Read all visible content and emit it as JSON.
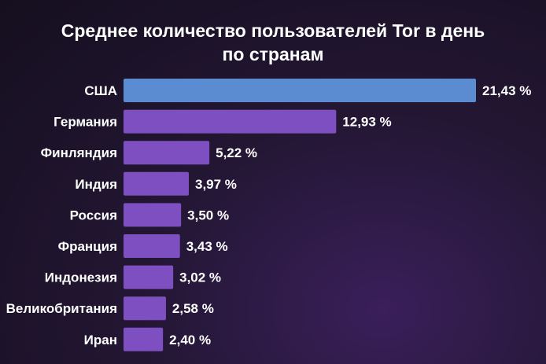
{
  "chart_data": {
    "type": "bar",
    "orientation": "horizontal",
    "title_lines": [
      "Среднее количество пользователей Tor в день",
      "по странам"
    ],
    "categories": [
      "США",
      "Германия",
      "Финляндия",
      "Индия",
      "Россия",
      "Франция",
      "Индонезия",
      "Великобритания",
      "Иран"
    ],
    "values": [
      21.43,
      12.93,
      5.22,
      3.97,
      3.5,
      3.43,
      3.02,
      2.58,
      2.4
    ],
    "value_labels": [
      "21,43 %",
      "12,93 %",
      "5,22 %",
      "3,97 %",
      "3,50 %",
      "3,43 %",
      "3,02 %",
      "2,58 %",
      "2,40 %"
    ],
    "xlim": [
      0,
      21.43
    ],
    "grid": false,
    "legend": "none",
    "colors": {
      "highlight": "#5b8bd0",
      "bar": "#7e4fc0",
      "background": "#1a1224",
      "text": "#ffffff"
    }
  }
}
